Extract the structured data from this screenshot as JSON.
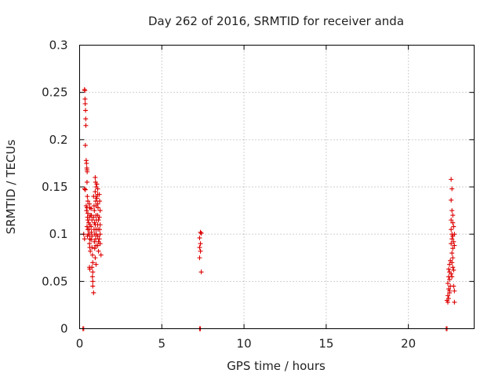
{
  "chart_data": {
    "type": "scatter",
    "title": "Day 262 of 2016, SRMTID for receiver anda",
    "xlabel": "GPS time / hours",
    "ylabel": "SRMTID / TECUs",
    "xlim": [
      0,
      24
    ],
    "ylim": [
      0,
      0.3
    ],
    "x_ticks": [
      "0",
      "5",
      "10",
      "15",
      "20"
    ],
    "y_ticks": [
      "0",
      "0.05",
      "0.1",
      "0.15",
      "0.2",
      "0.25",
      "0.3"
    ],
    "grid": true,
    "legend": "none",
    "marker": "+",
    "color": "#dd0000",
    "series": [
      {
        "points": [
          [
            0.2,
            0.0
          ],
          [
            0.25,
            0.0
          ],
          [
            0.3,
            0.253
          ],
          [
            0.32,
            0.252
          ],
          [
            0.33,
            0.243
          ],
          [
            0.34,
            0.238
          ],
          [
            0.36,
            0.231
          ],
          [
            0.37,
            0.222
          ],
          [
            0.38,
            0.215
          ],
          [
            0.35,
            0.194
          ],
          [
            0.3,
            0.148
          ],
          [
            0.35,
            0.147
          ],
          [
            0.25,
            0.1
          ],
          [
            0.3,
            0.095
          ],
          [
            0.4,
            0.178
          ],
          [
            0.42,
            0.175
          ],
          [
            0.44,
            0.17
          ],
          [
            0.45,
            0.168
          ],
          [
            0.46,
            0.166
          ],
          [
            0.45,
            0.155
          ],
          [
            0.47,
            0.14
          ],
          [
            0.5,
            0.135
          ],
          [
            0.4,
            0.13
          ],
          [
            0.45,
            0.128
          ],
          [
            0.42,
            0.125
          ],
          [
            0.5,
            0.122
          ],
          [
            0.48,
            0.118
          ],
          [
            0.5,
            0.115
          ],
          [
            0.55,
            0.112
          ],
          [
            0.45,
            0.108
          ],
          [
            0.5,
            0.105
          ],
          [
            0.52,
            0.1
          ],
          [
            0.48,
            0.098
          ],
          [
            0.6,
            0.132
          ],
          [
            0.62,
            0.128
          ],
          [
            0.65,
            0.12
          ],
          [
            0.6,
            0.118
          ],
          [
            0.63,
            0.11
          ],
          [
            0.58,
            0.105
          ],
          [
            0.6,
            0.1
          ],
          [
            0.62,
            0.095
          ],
          [
            0.6,
            0.09
          ],
          [
            0.62,
            0.086
          ],
          [
            0.65,
            0.082
          ],
          [
            0.6,
            0.065
          ],
          [
            0.62,
            0.063
          ],
          [
            0.7,
            0.127
          ],
          [
            0.72,
            0.12
          ],
          [
            0.75,
            0.115
          ],
          [
            0.7,
            0.108
          ],
          [
            0.72,
            0.102
          ],
          [
            0.75,
            0.098
          ],
          [
            0.7,
            0.094
          ],
          [
            0.75,
            0.086
          ],
          [
            0.78,
            0.078
          ],
          [
            0.8,
            0.07
          ],
          [
            0.75,
            0.065
          ],
          [
            0.8,
            0.06
          ],
          [
            0.78,
            0.055
          ],
          [
            0.8,
            0.05
          ],
          [
            0.8,
            0.045
          ],
          [
            0.85,
            0.038
          ],
          [
            0.85,
            0.14
          ],
          [
            0.88,
            0.13
          ],
          [
            0.9,
            0.125
          ],
          [
            0.85,
            0.118
          ],
          [
            0.9,
            0.112
          ],
          [
            0.88,
            0.105
          ],
          [
            0.92,
            0.1
          ],
          [
            0.9,
            0.092
          ],
          [
            0.92,
            0.085
          ],
          [
            0.95,
            0.16
          ],
          [
            0.97,
            0.155
          ],
          [
            1.0,
            0.15
          ],
          [
            0.95,
            0.145
          ],
          [
            1.0,
            0.14
          ],
          [
            0.98,
            0.135
          ],
          [
            1.0,
            0.13
          ],
          [
            1.0,
            0.12
          ],
          [
            1.02,
            0.115
          ],
          [
            0.95,
            0.11
          ],
          [
            1.0,
            0.105
          ],
          [
            1.02,
            0.1
          ],
          [
            0.98,
            0.095
          ],
          [
            1.0,
            0.088
          ],
          [
            0.95,
            0.075
          ],
          [
            1.0,
            0.068
          ],
          [
            1.05,
            0.153
          ],
          [
            1.1,
            0.148
          ],
          [
            1.1,
            0.142
          ],
          [
            1.05,
            0.138
          ],
          [
            1.1,
            0.132
          ],
          [
            1.12,
            0.128
          ],
          [
            1.1,
            0.12
          ],
          [
            1.15,
            0.115
          ],
          [
            1.1,
            0.11
          ],
          [
            1.12,
            0.105
          ],
          [
            1.1,
            0.098
          ],
          [
            1.15,
            0.092
          ],
          [
            1.1,
            0.088
          ],
          [
            1.15,
            0.082
          ],
          [
            1.2,
            0.142
          ],
          [
            1.22,
            0.135
          ],
          [
            1.25,
            0.125
          ],
          [
            1.2,
            0.118
          ],
          [
            1.25,
            0.11
          ],
          [
            1.22,
            0.105
          ],
          [
            1.25,
            0.1
          ],
          [
            1.2,
            0.095
          ],
          [
            1.25,
            0.09
          ],
          [
            1.3,
            0.078
          ],
          [
            7.3,
            0.0
          ],
          [
            7.35,
            0.0
          ],
          [
            7.35,
            0.102
          ],
          [
            7.4,
            0.101
          ],
          [
            7.3,
            0.096
          ],
          [
            7.35,
            0.09
          ],
          [
            7.3,
            0.086
          ],
          [
            7.35,
            0.082
          ],
          [
            7.3,
            0.075
          ],
          [
            7.4,
            0.06
          ],
          [
            22.3,
            0.0
          ],
          [
            22.35,
            0.0
          ],
          [
            22.4,
            0.028
          ],
          [
            22.35,
            0.03
          ],
          [
            22.45,
            0.032
          ],
          [
            22.4,
            0.035
          ],
          [
            22.5,
            0.038
          ],
          [
            22.45,
            0.042
          ],
          [
            22.4,
            0.048
          ],
          [
            22.5,
            0.052
          ],
          [
            22.45,
            0.055
          ],
          [
            22.5,
            0.06
          ],
          [
            22.45,
            0.063
          ],
          [
            22.5,
            0.068
          ],
          [
            22.55,
            0.072
          ],
          [
            22.5,
            0.04
          ],
          [
            22.55,
            0.045
          ],
          [
            22.6,
            0.158
          ],
          [
            22.65,
            0.148
          ],
          [
            22.6,
            0.136
          ],
          [
            22.65,
            0.125
          ],
          [
            22.6,
            0.115
          ],
          [
            22.7,
            0.112
          ],
          [
            22.6,
            0.105
          ],
          [
            22.65,
            0.1
          ],
          [
            22.7,
            0.098
          ],
          [
            22.65,
            0.095
          ],
          [
            22.6,
            0.09
          ],
          [
            22.7,
            0.085
          ],
          [
            22.65,
            0.08
          ],
          [
            22.7,
            0.075
          ],
          [
            22.65,
            0.07
          ],
          [
            22.7,
            0.065
          ],
          [
            22.75,
            0.062
          ],
          [
            22.6,
            0.058
          ],
          [
            22.65,
            0.055
          ],
          [
            22.75,
            0.045
          ],
          [
            22.8,
            0.04
          ],
          [
            22.8,
            0.028
          ],
          [
            22.7,
            0.12
          ],
          [
            22.75,
            0.108
          ],
          [
            22.8,
            0.1
          ],
          [
            22.75,
            0.092
          ],
          [
            22.8,
            0.088
          ]
        ]
      }
    ]
  }
}
